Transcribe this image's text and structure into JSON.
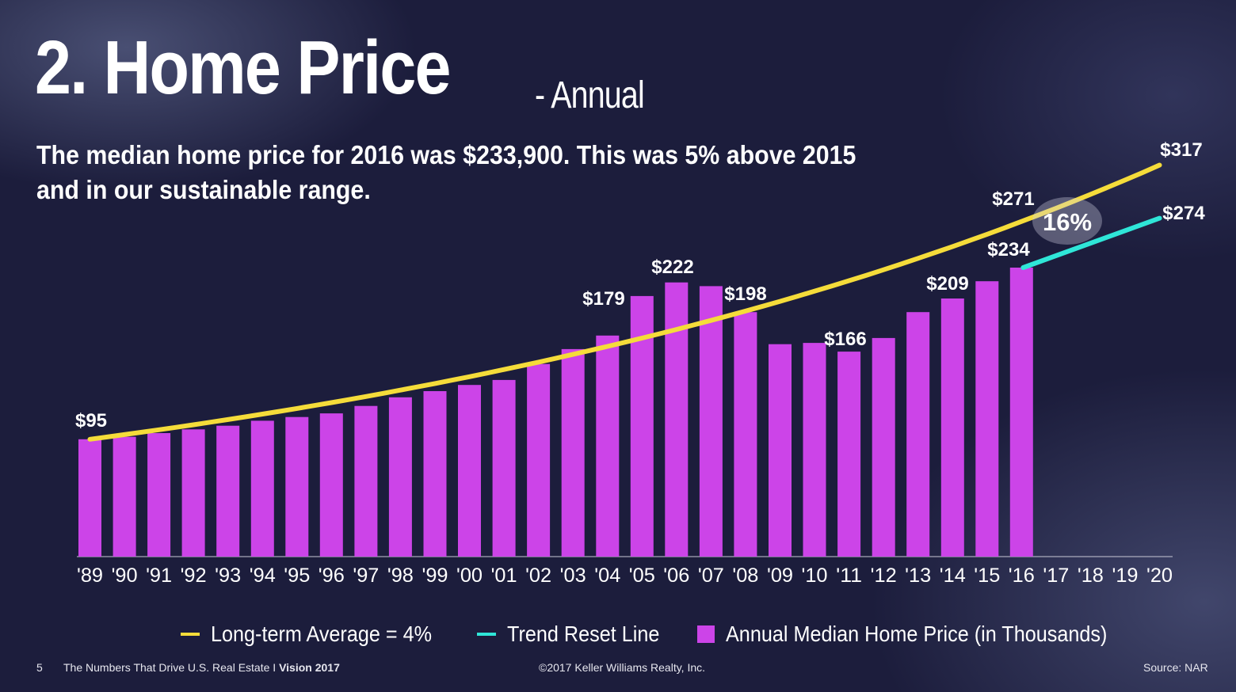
{
  "slide": {
    "title": "2. Home Price",
    "title_suffix": "- Annual",
    "subtitle": "The median home price for 2016 was $233,900. This was 5% above 2015 and in our sustainable range."
  },
  "colors": {
    "bar": "#cc44e8",
    "long_term": "#f5dc3a",
    "trend_reset": "#2fe6d8",
    "background": "#1c1d3c"
  },
  "chart_data": {
    "type": "bar",
    "categories": [
      "'89",
      "'90",
      "'91",
      "'92",
      "'93",
      "'94",
      "'95",
      "'96",
      "'97",
      "'98",
      "'99",
      "'00",
      "'01",
      "'02",
      "'03",
      "'04",
      "'05",
      "'06",
      "'07",
      "'08",
      "'09",
      "'10",
      "'11",
      "'12",
      "'13",
      "'14",
      "'15",
      "'16",
      "'17",
      "'18",
      "'19",
      "'20"
    ],
    "series": [
      {
        "name": "Annual Median Home Price (in Thousands)",
        "kind": "bar",
        "values": [
          95,
          97,
          100,
          103,
          106,
          110,
          113,
          116,
          122,
          129,
          134,
          139,
          143,
          156,
          168,
          179,
          211,
          222,
          219,
          198,
          172,
          173,
          166,
          177,
          198,
          209,
          223,
          234,
          null,
          null,
          null,
          null
        ]
      },
      {
        "name": "Long-term Average = 4%",
        "kind": "line",
        "x": [
          "'89",
          "'16",
          "'20"
        ],
        "values": [
          95,
          271,
          317
        ]
      },
      {
        "name": "Trend Reset Line",
        "kind": "line",
        "x": [
          "'16",
          "'20"
        ],
        "values": [
          234,
          274
        ]
      }
    ],
    "data_labels": [
      {
        "category": "'89",
        "text": "$95"
      },
      {
        "category": "'04",
        "text": "$179"
      },
      {
        "category": "'06",
        "text": "$222"
      },
      {
        "category": "'08",
        "text": "$198"
      },
      {
        "category": "'11",
        "text": "$166"
      },
      {
        "category": "'14",
        "text": "$209"
      },
      {
        "category": "'16",
        "text": "$234"
      },
      {
        "category": "'16",
        "text": "$271"
      },
      {
        "category": "'20",
        "text": "$317"
      },
      {
        "category": "'20",
        "text": "$274"
      }
    ],
    "annotation": "16%",
    "ylim": [
      0,
      320
    ],
    "grid": false,
    "legend_position": "bottom"
  },
  "legend": [
    {
      "label": "Long-term Average = 4%",
      "kind": "line",
      "color": "#f5dc3a"
    },
    {
      "label": "Trend Reset Line",
      "kind": "line",
      "color": "#2fe6d8"
    },
    {
      "label": "Annual Median Home Price (in Thousands)",
      "kind": "box",
      "color": "#cc44e8"
    }
  ],
  "footer": {
    "page": "5",
    "series_title": "The Numbers That Drive U.S. Real Estate I ",
    "series_title_bold": "Vision 2017",
    "copyright": "©2017 Keller Williams Realty, Inc.",
    "source": "Source: NAR"
  }
}
